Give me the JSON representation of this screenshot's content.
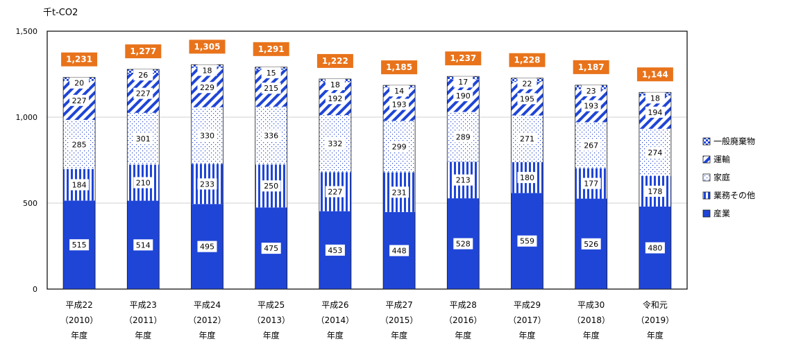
{
  "chart_data": {
    "type": "bar",
    "stacked": true,
    "unit_label": "千t-CO2",
    "ylim": [
      0,
      1500
    ],
    "y_ticks": [
      "0",
      "500",
      "1,000",
      "1,500"
    ],
    "grid": "horizontal",
    "legend_position": "right",
    "categories": [
      [
        "平成22",
        "（2010）",
        "年度"
      ],
      [
        "平成23",
        "（2011）",
        "年度"
      ],
      [
        "平成24",
        "（2012）",
        "年度"
      ],
      [
        "平成25",
        "（2013）",
        "年度"
      ],
      [
        "平成26",
        "（2014）",
        "年度"
      ],
      [
        "平成27",
        "（2015）",
        "年度"
      ],
      [
        "平成28",
        "（2016）",
        "年度"
      ],
      [
        "平成29",
        "（2017）",
        "年度"
      ],
      [
        "平成30",
        "（2018）",
        "年度"
      ],
      [
        "令和元",
        "（2019）",
        "年度"
      ]
    ],
    "series": [
      {
        "name": "産業",
        "pattern": "solid",
        "color": "#1f45d6",
        "values": [
          515,
          514,
          495,
          475,
          453,
          448,
          528,
          559,
          526,
          480
        ]
      },
      {
        "name": "業務その他",
        "pattern": "vertical",
        "color": "#1f45d6",
        "values": [
          184,
          210,
          233,
          250,
          227,
          231,
          213,
          180,
          177,
          178
        ]
      },
      {
        "name": "家庭",
        "pattern": "dots",
        "color": "#1f45d6",
        "values": [
          285,
          301,
          330,
          336,
          332,
          299,
          289,
          271,
          267,
          274
        ]
      },
      {
        "name": "運輸",
        "pattern": "diagonal",
        "color": "#1f45d6",
        "values": [
          227,
          227,
          229,
          215,
          192,
          193,
          190,
          195,
          193,
          194
        ]
      },
      {
        "name": "一般廃棄物",
        "pattern": "checker",
        "color": "#1f45d6",
        "values": [
          20,
          26,
          18,
          15,
          18,
          14,
          17,
          22,
          23,
          18
        ]
      }
    ],
    "totals": [
      "1,231",
      "1,277",
      "1,305",
      "1,291",
      "1,222",
      "1,185",
      "1,237",
      "1,228",
      "1,187",
      "1,144"
    ],
    "total_label_color": "#e8731b",
    "legend_order": [
      "一般廃棄物",
      "運輸",
      "家庭",
      "業務その他",
      "産業"
    ]
  }
}
